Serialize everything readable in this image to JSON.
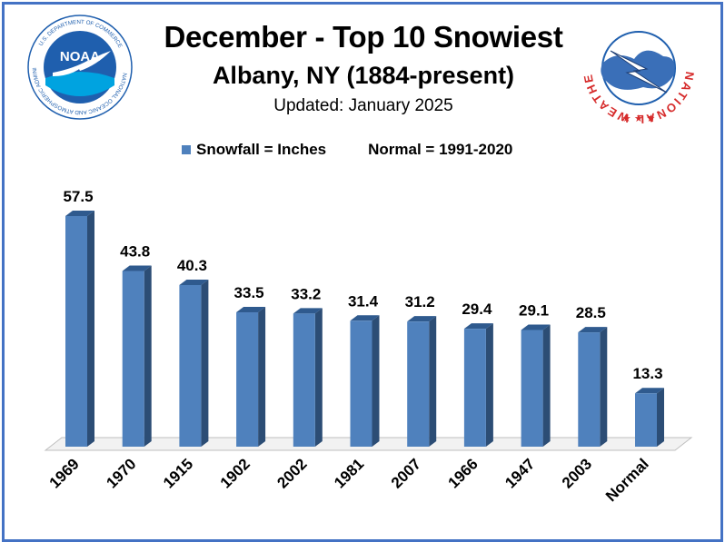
{
  "header": {
    "title": "December - Top 10 Snowiest",
    "subtitle": "Albany, NY (1884-present)",
    "updated": "Updated: January 2025"
  },
  "logos": {
    "left": {
      "name": "NOAA",
      "ring_text": "NATIONAL OCEANIC AND ATMOSPHERIC ADMINISTRATION",
      "bottom_text": "U.S. DEPARTMENT OF COMMERCE"
    },
    "right": {
      "ring_text": "NATIONAL WEATHER SERVICE"
    }
  },
  "legend": {
    "series_label": "Snowfall = Inches",
    "normal_note": "Normal = 1991-2020"
  },
  "colors": {
    "bar_front": "#4f81bd",
    "bar_side": "#2c4d75",
    "bar_top": "#2f5a8e",
    "frame": "#4472c4",
    "noaa_blue": "#1f5fae",
    "nws_red": "#d62b2b"
  },
  "chart_data": {
    "type": "bar",
    "categories": [
      "1969",
      "1970",
      "1915",
      "1902",
      "2002",
      "1981",
      "2007",
      "1966",
      "1947",
      "2003",
      "Normal"
    ],
    "values": [
      57.5,
      43.8,
      40.3,
      33.5,
      33.2,
      31.4,
      31.2,
      29.4,
      29.1,
      28.5,
      13.3
    ],
    "value_labels": [
      "57.5",
      "43.8",
      "40.3",
      "33.5",
      "33.2",
      "31.4",
      "31.2",
      "29.4",
      "29.1",
      "28.5",
      "13.3"
    ],
    "ylim": [
      0,
      60
    ],
    "grid": false
  }
}
